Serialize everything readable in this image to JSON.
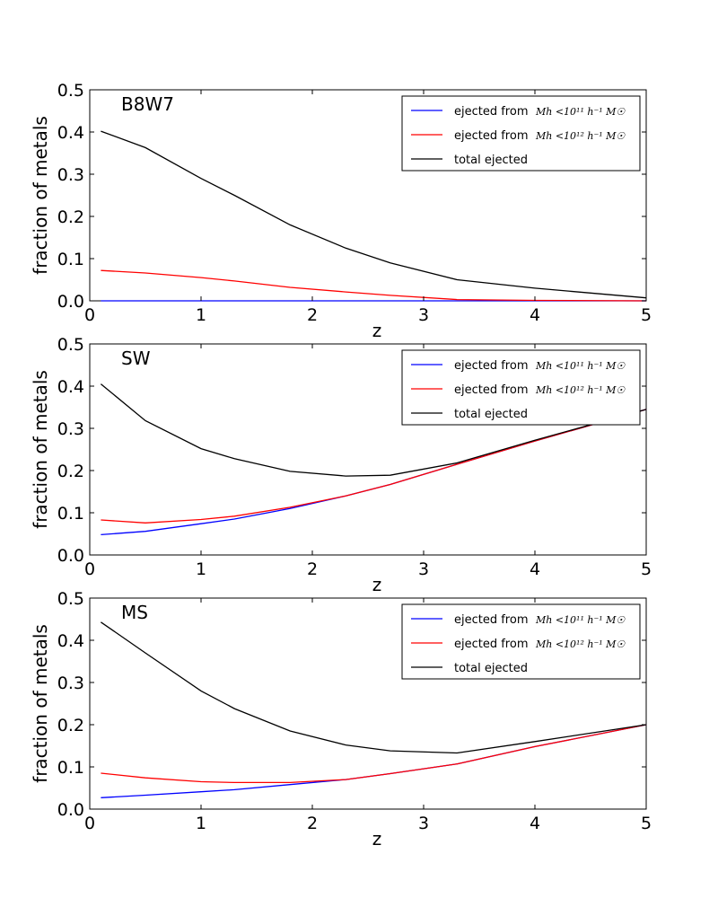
{
  "chart_data": [
    {
      "type": "line",
      "title": "B8W7",
      "xlabel": "z",
      "ylabel": "fraction of metals",
      "xlim": [
        0,
        5
      ],
      "ylim": [
        0,
        0.5
      ],
      "xticks": [
        "0",
        "1",
        "2",
        "3",
        "4",
        "5"
      ],
      "yticks": [
        "0.0",
        "0.1",
        "0.2",
        "0.3",
        "0.4",
        "0.5"
      ],
      "legend_position": "top-right",
      "series": [
        {
          "name": "ejected from",
          "name_math": "Mh <10¹¹ h⁻¹ M☉",
          "color": "#0000ff",
          "x": [
            0.1,
            0.5,
            1.0,
            1.3,
            1.8,
            2.3,
            2.7,
            3.3,
            4.0,
            5.0
          ],
          "y": [
            0.0,
            0.0,
            0.0,
            0.0,
            0.0,
            0.0,
            0.0,
            0.0,
            0.0,
            0.0
          ]
        },
        {
          "name": "ejected from",
          "name_math": "Mh <10¹² h⁻¹ M☉",
          "color": "#ff0000",
          "x": [
            0.1,
            0.5,
            1.0,
            1.3,
            1.8,
            2.3,
            2.7,
            3.3,
            4.0,
            5.0
          ],
          "y": [
            0.072,
            0.066,
            0.055,
            0.047,
            0.032,
            0.021,
            0.013,
            0.003,
            0.001,
            0.0
          ]
        },
        {
          "name": "total ejected",
          "color": "#000000",
          "x": [
            0.1,
            0.5,
            1.0,
            1.3,
            1.8,
            2.3,
            2.7,
            3.3,
            4.0,
            5.0
          ],
          "y": [
            0.402,
            0.363,
            0.29,
            0.25,
            0.18,
            0.125,
            0.09,
            0.05,
            0.03,
            0.007
          ]
        }
      ]
    },
    {
      "type": "line",
      "title": "SW",
      "xlabel": "z",
      "ylabel": "fraction of metals",
      "xlim": [
        0,
        5
      ],
      "ylim": [
        0,
        0.5
      ],
      "xticks": [
        "0",
        "1",
        "2",
        "3",
        "4",
        "5"
      ],
      "yticks": [
        "0.0",
        "0.1",
        "0.2",
        "0.3",
        "0.4",
        "0.5"
      ],
      "legend_position": "top-right",
      "series": [
        {
          "name": "ejected from",
          "name_math": "Mh <10¹¹ h⁻¹ M☉",
          "color": "#0000ff",
          "x": [
            0.1,
            0.5,
            1.0,
            1.3,
            1.8,
            2.3,
            2.7,
            3.3,
            4.0,
            5.0
          ],
          "y": [
            0.048,
            0.056,
            0.074,
            0.085,
            0.11,
            0.14,
            0.167,
            0.215,
            0.27,
            0.345
          ]
        },
        {
          "name": "ejected from",
          "name_math": "Mh <10¹² h⁻¹ M☉",
          "color": "#ff0000",
          "x": [
            0.1,
            0.5,
            1.0,
            1.3,
            1.8,
            2.3,
            2.7,
            3.3,
            4.0,
            5.0
          ],
          "y": [
            0.083,
            0.076,
            0.084,
            0.092,
            0.113,
            0.14,
            0.167,
            0.215,
            0.27,
            0.345
          ]
        },
        {
          "name": "total ejected",
          "color": "#000000",
          "x": [
            0.1,
            0.5,
            1.0,
            1.3,
            1.8,
            2.3,
            2.7,
            3.3,
            4.0,
            5.0
          ],
          "y": [
            0.405,
            0.318,
            0.252,
            0.228,
            0.198,
            0.187,
            0.189,
            0.218,
            0.272,
            0.345
          ]
        }
      ]
    },
    {
      "type": "line",
      "title": "MS",
      "xlabel": "z",
      "ylabel": "fraction of metals",
      "xlim": [
        0,
        5
      ],
      "ylim": [
        0,
        0.5
      ],
      "xticks": [
        "0",
        "1",
        "2",
        "3",
        "4",
        "5"
      ],
      "yticks": [
        "0.0",
        "0.1",
        "0.2",
        "0.3",
        "0.4",
        "0.5"
      ],
      "legend_position": "top-right",
      "series": [
        {
          "name": "ejected from",
          "name_math": "Mh <10¹¹ h⁻¹ M☉",
          "color": "#0000ff",
          "x": [
            0.1,
            0.5,
            1.0,
            1.3,
            1.8,
            2.3,
            2.7,
            3.3,
            4.0,
            5.0
          ],
          "y": [
            0.027,
            0.033,
            0.041,
            0.046,
            0.058,
            0.07,
            0.084,
            0.107,
            0.148,
            0.2
          ]
        },
        {
          "name": "ejected from",
          "name_math": "Mh <10¹² h⁻¹ M☉",
          "color": "#ff0000",
          "x": [
            0.1,
            0.5,
            1.0,
            1.3,
            1.8,
            2.3,
            2.7,
            3.3,
            4.0,
            5.0
          ],
          "y": [
            0.085,
            0.074,
            0.065,
            0.063,
            0.063,
            0.07,
            0.084,
            0.107,
            0.148,
            0.2
          ]
        },
        {
          "name": "total ejected",
          "color": "#000000",
          "x": [
            0.1,
            0.5,
            1.0,
            1.3,
            1.8,
            2.3,
            2.7,
            3.3,
            4.0,
            5.0
          ],
          "y": [
            0.443,
            0.37,
            0.28,
            0.238,
            0.185,
            0.152,
            0.138,
            0.133,
            0.16,
            0.2
          ]
        }
      ]
    }
  ]
}
